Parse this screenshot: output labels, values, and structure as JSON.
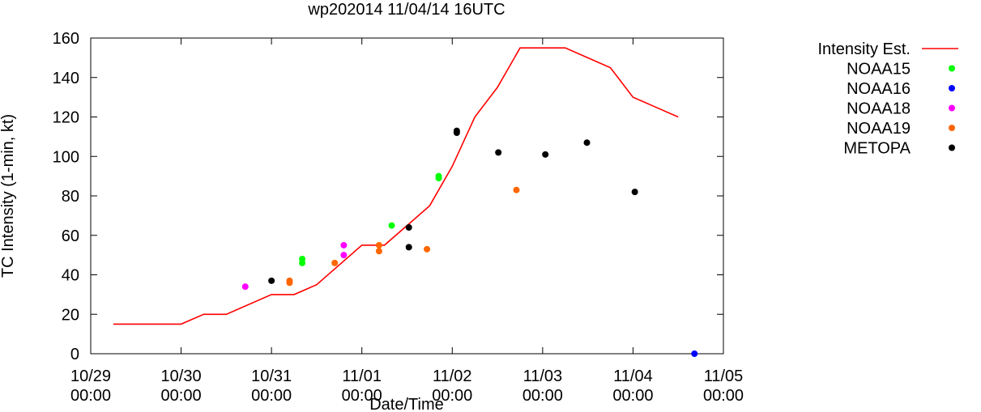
{
  "chart_data": {
    "type": "line+scatter",
    "title": "wp202014 11/04/14 16UTC",
    "xlabel": "Date/Time",
    "ylabel": "TC Intensity (1-min, kt)",
    "xlim": [
      0,
      7
    ],
    "ylim": [
      0,
      160
    ],
    "x_unit": "days since 10/29 00:00",
    "x_ticks": [
      {
        "x": 0,
        "line1": "10/29",
        "line2": "00:00"
      },
      {
        "x": 1,
        "line1": "10/30",
        "line2": "00:00"
      },
      {
        "x": 2,
        "line1": "10/31",
        "line2": "00:00"
      },
      {
        "x": 3,
        "line1": "11/01",
        "line2": "00:00"
      },
      {
        "x": 4,
        "line1": "11/02",
        "line2": "00:00"
      },
      {
        "x": 5,
        "line1": "11/03",
        "line2": "00:00"
      },
      {
        "x": 6,
        "line1": "11/04",
        "line2": "00:00"
      },
      {
        "x": 7,
        "line1": "11/05",
        "line2": "00:00"
      }
    ],
    "y_ticks": [
      0,
      20,
      40,
      60,
      80,
      100,
      120,
      140,
      160
    ],
    "series": [
      {
        "name": "Intensity Est.",
        "kind": "line",
        "color": "#ff0000",
        "points": [
          [
            0.25,
            15
          ],
          [
            1.0,
            15
          ],
          [
            1.25,
            20
          ],
          [
            1.5,
            20
          ],
          [
            2.0,
            30
          ],
          [
            2.25,
            30
          ],
          [
            2.5,
            35
          ],
          [
            3.0,
            55
          ],
          [
            3.25,
            55
          ],
          [
            3.5,
            65
          ],
          [
            3.75,
            75
          ],
          [
            4.0,
            95
          ],
          [
            4.25,
            120
          ],
          [
            4.5,
            135
          ],
          [
            4.75,
            155
          ],
          [
            5.0,
            155
          ],
          [
            5.25,
            155
          ],
          [
            5.5,
            150
          ],
          [
            5.75,
            145
          ],
          [
            6.0,
            130
          ],
          [
            6.25,
            125
          ],
          [
            6.5,
            120
          ]
        ]
      },
      {
        "name": "NOAA15",
        "kind": "scatter",
        "color": "#00ff00",
        "points": [
          [
            2.34,
            48
          ],
          [
            2.34,
            46
          ],
          [
            3.33,
            65
          ],
          [
            3.85,
            90
          ],
          [
            3.85,
            89
          ]
        ]
      },
      {
        "name": "NOAA16",
        "kind": "scatter",
        "color": "#0000ff",
        "points": [
          [
            6.68,
            0
          ]
        ]
      },
      {
        "name": "NOAA18",
        "kind": "scatter",
        "color": "#ff00ff",
        "points": [
          [
            1.71,
            34
          ],
          [
            2.8,
            55
          ],
          [
            2.8,
            50
          ]
        ]
      },
      {
        "name": "NOAA19",
        "kind": "scatter",
        "color": "#ff6600",
        "points": [
          [
            2.2,
            37
          ],
          [
            2.2,
            36
          ],
          [
            2.7,
            46
          ],
          [
            3.19,
            55
          ],
          [
            3.19,
            52
          ],
          [
            3.72,
            53
          ],
          [
            4.71,
            83
          ]
        ]
      },
      {
        "name": "METOPA",
        "kind": "scatter",
        "color": "#000000",
        "points": [
          [
            2.0,
            37
          ],
          [
            3.52,
            64
          ],
          [
            3.52,
            54
          ],
          [
            4.05,
            113
          ],
          [
            4.05,
            112
          ],
          [
            4.51,
            102
          ],
          [
            5.03,
            101
          ],
          [
            5.49,
            107
          ],
          [
            6.02,
            82
          ]
        ]
      }
    ],
    "legend_position": "top-right"
  }
}
